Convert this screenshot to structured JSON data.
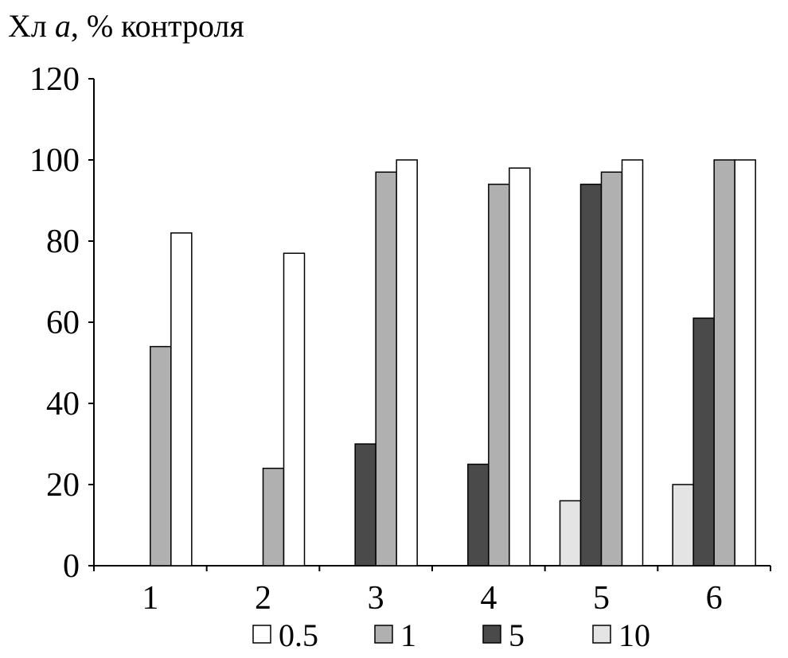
{
  "chart_data": {
    "type": "bar",
    "title": "Хл a, % контроля",
    "title_parts": [
      "Хл ",
      "a",
      ", % контроля"
    ],
    "xlabel": "",
    "ylabel": "Хл a, % контроля",
    "ylim": [
      0,
      120
    ],
    "yticks": [
      "0",
      "20",
      "40",
      "60",
      "80",
      "100",
      "120"
    ],
    "categories": [
      "1",
      "2",
      "3",
      "4",
      "5",
      "6"
    ],
    "grid": false,
    "legend_position": "bottom",
    "series": [
      {
        "name": "10",
        "color": "#e4e4e4",
        "values": [
          0,
          0,
          0,
          0,
          16,
          20
        ]
      },
      {
        "name": "5",
        "color": "#4a4a4a",
        "values": [
          0,
          0,
          30,
          25,
          94,
          61
        ]
      },
      {
        "name": "1",
        "color": "#b0b0b0",
        "values": [
          54,
          24,
          97,
          94,
          97,
          100
        ]
      },
      {
        "name": "0.5",
        "color": "#ffffff",
        "values": [
          82,
          77,
          100,
          98,
          100,
          100
        ]
      }
    ],
    "legend_order": [
      "0.5",
      "1",
      "5",
      "10"
    ]
  }
}
